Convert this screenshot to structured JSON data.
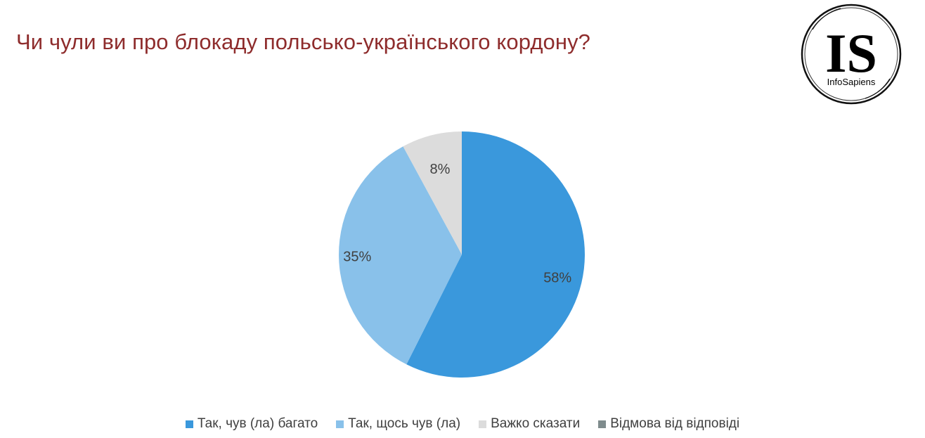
{
  "title": "Чи чули ви про блокаду польсько-українського кордону?",
  "logo": {
    "letters": "IS",
    "name": "InfoSapiens"
  },
  "chart_data": {
    "type": "pie",
    "title": "Чи чули ви про блокаду польсько-українського кордону?",
    "legend_position": "bottom",
    "slices": [
      {
        "name": "Так, чув (ла) багато",
        "value": 58,
        "label": "58%",
        "color": "#3a98dc"
      },
      {
        "name": "Так, щось чув (ла)",
        "value": 35,
        "label": "35%",
        "color": "#89c1ea"
      },
      {
        "name": "Важко сказати",
        "value": 8,
        "label": "8%",
        "color": "#dcdcdc"
      },
      {
        "name": "Відмова від відповіді",
        "value": 0,
        "label": "",
        "color": "#7f8c8d"
      }
    ]
  }
}
